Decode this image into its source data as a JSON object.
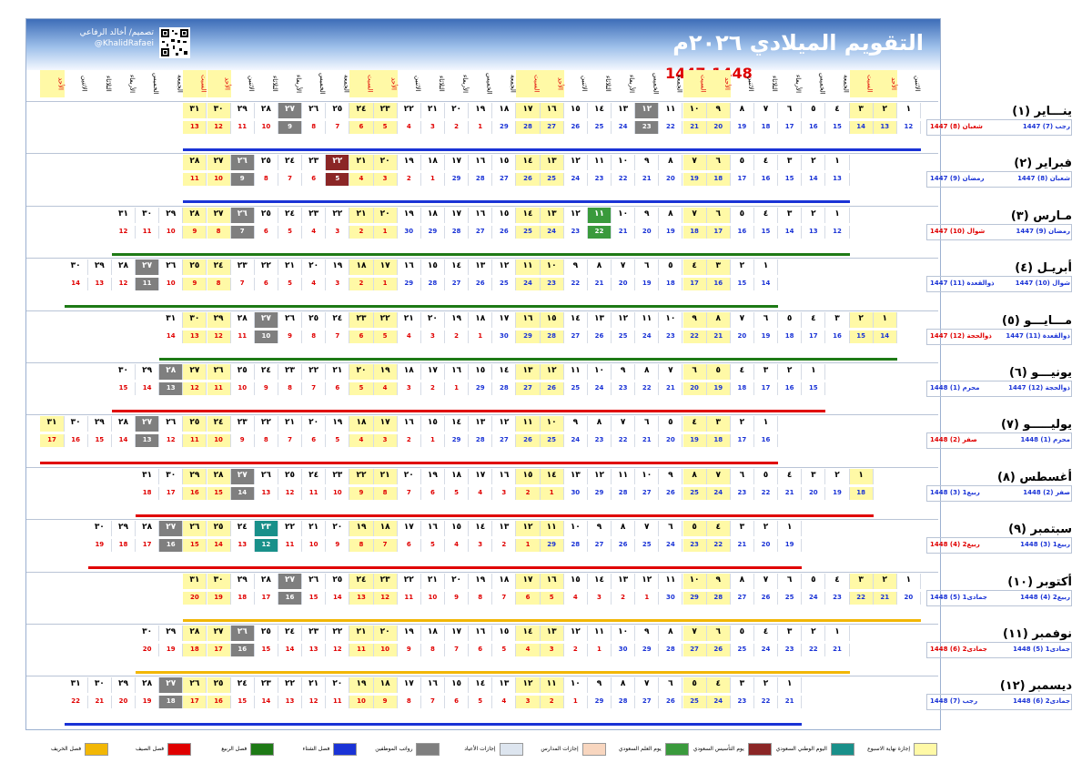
{
  "title": "التقويم الميلادي ٢٠٢٦م",
  "hijri_years": "1447-1448",
  "designer": {
    "line1": "تصميم/ أخالد الرفاعي",
    "handle": "@KhalidRafaei"
  },
  "weekday_headers": [
    "الاثنين",
    "الأحد",
    "السبت",
    "الجمعة",
    "الخميس",
    "الأربعاء",
    "الثلاثاء",
    "الاثنين",
    "الأحد",
    "السبت",
    "الجمعة",
    "الخميس",
    "الأربعاء",
    "الثلاثاء",
    "الاثنين",
    "الأحد",
    "السبت",
    "الجمعة",
    "الخميس",
    "الأربعاء",
    "الثلاثاء",
    "الاثنين",
    "الأحد",
    "السبت",
    "الجمعة",
    "الخميس",
    "الأربعاء",
    "الثلاثاء",
    "الاثنين",
    "الأحد",
    "السبت",
    "الجمعة",
    "الخميس",
    "الأربعاء",
    "الثلاثاء",
    "الاثنين",
    "الأحد"
  ],
  "colors": {
    "weekend": "#fff9a6",
    "school": "#dde5ef",
    "eid": "#7f7f7f",
    "saudi_founding": "#8b2626",
    "national": "#19908a",
    "flag": "#3a9a3c",
    "saudi_day": "#f8d6bf",
    "winter": "#1a33d6",
    "spring": "#1e7a16",
    "summer": "#e00000",
    "autumn": "#f2b705"
  },
  "months": [
    {
      "name": "ينـــاير (١)",
      "h1": "رجب (7) 1447",
      "h2": "شعبان (8) 1447",
      "h2color": "red",
      "start": 0,
      "days": 31,
      "hijri": [
        12,
        13,
        14,
        15,
        16,
        17,
        18,
        19,
        20,
        21,
        22,
        23,
        24,
        25,
        26,
        27,
        28,
        29,
        1,
        2,
        3,
        4,
        5,
        6,
        7,
        8,
        9,
        10,
        11,
        12,
        13
      ],
      "h_new": 18,
      "bar": "#1a33d6",
      "events": {
        "27": "eid",
        "12": "eid"
      }
    },
    {
      "name": "فبراير (٢)",
      "h1": "شعبان (8) 1447",
      "h2": "رمضان (9) 1447",
      "h2color": "blue",
      "start": 3,
      "days": 28,
      "hijri": [
        13,
        14,
        15,
        16,
        17,
        18,
        19,
        20,
        21,
        22,
        23,
        24,
        25,
        26,
        27,
        28,
        29,
        1,
        2,
        3,
        4,
        5,
        6,
        7,
        8,
        9,
        10,
        11
      ],
      "h_new": 17,
      "bar": "#1a33d6",
      "events": {
        "22": "saudi_founding",
        "26": "eid"
      }
    },
    {
      "name": "مـارس (٣)",
      "h1": "رمضان (9) 1447",
      "h2": "شوال (10) 1447",
      "h2color": "red",
      "start": 3,
      "days": 31,
      "hijri": [
        12,
        13,
        14,
        15,
        16,
        17,
        18,
        19,
        20,
        21,
        22,
        23,
        24,
        25,
        26,
        27,
        28,
        29,
        30,
        1,
        2,
        3,
        4,
        5,
        6,
        7,
        8,
        9,
        10,
        11,
        12
      ],
      "h_new": 19,
      "bar": "#1e7a16",
      "events": {
        "11": "flag",
        "26": "eid"
      }
    },
    {
      "name": "أبريـل (٤)",
      "h1": "شوال (10) 1447",
      "h2": "ذوالقعدة (11) 1447",
      "h2color": "blue",
      "start": 6,
      "days": 30,
      "hijri": [
        14,
        15,
        16,
        17,
        18,
        19,
        20,
        21,
        22,
        23,
        24,
        25,
        26,
        27,
        28,
        29,
        1,
        2,
        3,
        4,
        5,
        6,
        7,
        8,
        9,
        10,
        11,
        12,
        13,
        14
      ],
      "h_new": 16,
      "bar": "#1e7a16",
      "events": {
        "27": "eid"
      }
    },
    {
      "name": "مـــايـــو (٥)",
      "h1": "ذوالقعدة (11) 1447",
      "h2": "ذوالحجة (12) 1447",
      "h2color": "red",
      "start": 1,
      "days": 31,
      "hijri": [
        14,
        15,
        16,
        17,
        18,
        19,
        20,
        21,
        22,
        23,
        24,
        25,
        26,
        27,
        28,
        29,
        30,
        1,
        2,
        3,
        4,
        5,
        6,
        7,
        8,
        9,
        10,
        11,
        12,
        13,
        14
      ],
      "h_new": 17,
      "bar": "#1e7a16",
      "events": {
        "27": "eid"
      }
    },
    {
      "name": "يونيـــو (٦)",
      "h1": "ذوالحجة (12) 1447",
      "h2": "محرم (1) 1448",
      "h2color": "blue",
      "start": 4,
      "days": 30,
      "hijri": [
        15,
        16,
        17,
        18,
        19,
        20,
        21,
        22,
        23,
        24,
        25,
        26,
        27,
        28,
        29,
        1,
        2,
        3,
        4,
        5,
        6,
        7,
        8,
        9,
        10,
        11,
        12,
        13,
        14,
        15
      ],
      "h_new": 15,
      "bar": "#e00000",
      "events": {
        "28": "eid"
      }
    },
    {
      "name": "يوليـــــو (٧)",
      "h1": "محرم (1) 1448",
      "h2": "صفر (2) 1448",
      "h2color": "red",
      "start": 6,
      "days": 31,
      "hijri": [
        16,
        17,
        18,
        19,
        20,
        21,
        22,
        23,
        24,
        25,
        26,
        27,
        28,
        29,
        1,
        2,
        3,
        4,
        5,
        6,
        7,
        8,
        9,
        10,
        11,
        12,
        13,
        14,
        15,
        16,
        17
      ],
      "h_new": 14,
      "bar": "#e00000",
      "events": {
        "27": "eid"
      }
    },
    {
      "name": "أغسطس (٨)",
      "h1": "صفر (2) 1448",
      "h2": "ربيع1 (3) 1448",
      "h2color": "blue",
      "start": 2,
      "days": 31,
      "hijri": [
        18,
        19,
        20,
        21,
        22,
        23,
        24,
        25,
        26,
        27,
        28,
        29,
        30,
        1,
        2,
        3,
        4,
        5,
        6,
        7,
        8,
        9,
        10,
        11,
        12,
        13,
        14,
        15,
        16,
        17,
        18
      ],
      "h_new": 13,
      "bar": "#e00000",
      "events": {
        "27": "eid"
      }
    },
    {
      "name": "سبتمبر (٩)",
      "h1": "ربيع1 (3) 1448",
      "h2": "ربيع2 (4) 1448",
      "h2color": "red",
      "start": 5,
      "days": 30,
      "hijri": [
        19,
        20,
        21,
        22,
        23,
        24,
        25,
        26,
        27,
        28,
        29,
        1,
        2,
        3,
        4,
        5,
        6,
        7,
        8,
        9,
        10,
        11,
        12,
        13,
        14,
        15,
        16,
        17,
        18,
        19
      ],
      "h_new": 11,
      "bar": "#e00000",
      "events": {
        "23": "national",
        "27": "eid"
      }
    },
    {
      "name": "أكتوبر (١٠)",
      "h1": "ربيع2 (4) 1448",
      "h2": "جمادى1 (5) 1448",
      "h2color": "blue",
      "start": 0,
      "days": 31,
      "hijri": [
        20,
        21,
        22,
        23,
        24,
        25,
        26,
        27,
        28,
        29,
        30,
        1,
        2,
        3,
        4,
        5,
        6,
        7,
        8,
        9,
        10,
        11,
        12,
        13,
        14,
        15,
        16,
        17,
        18,
        19,
        20
      ],
      "h_new": 11,
      "bar": "#f2b705",
      "events": {
        "27": "eid"
      }
    },
    {
      "name": "نوفمبر (١١)",
      "h1": "جمادى1 (5) 1448",
      "h2": "جمادى2 (6) 1448",
      "h2color": "red",
      "start": 3,
      "days": 30,
      "hijri": [
        21,
        22,
        23,
        24,
        25,
        26,
        27,
        28,
        29,
        30,
        1,
        2,
        3,
        4,
        5,
        6,
        7,
        8,
        9,
        10,
        11,
        12,
        13,
        14,
        15,
        16,
        17,
        18,
        19,
        20
      ],
      "h_new": 10,
      "bar": "#f2b705",
      "events": {
        "26": "eid"
      }
    },
    {
      "name": "ديسمبر (١٢)",
      "h1": "جمادى2 (6) 1448",
      "h2": "رجب (7) 1448",
      "h2color": "blue",
      "start": 5,
      "days": 31,
      "hijri": [
        21,
        22,
        23,
        24,
        25,
        26,
        27,
        28,
        29,
        1,
        2,
        3,
        4,
        5,
        6,
        7,
        8,
        9,
        10,
        11,
        12,
        13,
        14,
        15,
        16,
        17,
        18,
        19,
        20,
        21,
        22
      ],
      "h_new": 9,
      "bar": "#1a33d6",
      "events": {
        "27": "eid"
      }
    }
  ],
  "legend": [
    {
      "label": "إجازة نهاية الاسبوع",
      "color": "#fff9a6"
    },
    {
      "label": "اليوم الوطني السعودي",
      "color": "#19908a"
    },
    {
      "label": "يوم التأسيس السعودي",
      "color": "#8b2626"
    },
    {
      "label": "يوم العلم السعودي",
      "color": "#3a9a3c"
    },
    {
      "label": "إجازات المدارس",
      "color": "#f8d6bf"
    },
    {
      "label": "إجازات الأعياد",
      "color": "#dde5ef"
    },
    {
      "label": "رواتب الموظفين",
      "color": "#7f7f7f"
    },
    {
      "label": "فصل الشتاء",
      "color": "#1a33d6"
    },
    {
      "label": "فصل الربيع",
      "color": "#1e7a16"
    },
    {
      "label": "فصل الصيف",
      "color": "#e00000"
    },
    {
      "label": "فصل الخريف",
      "color": "#f2b705"
    }
  ]
}
